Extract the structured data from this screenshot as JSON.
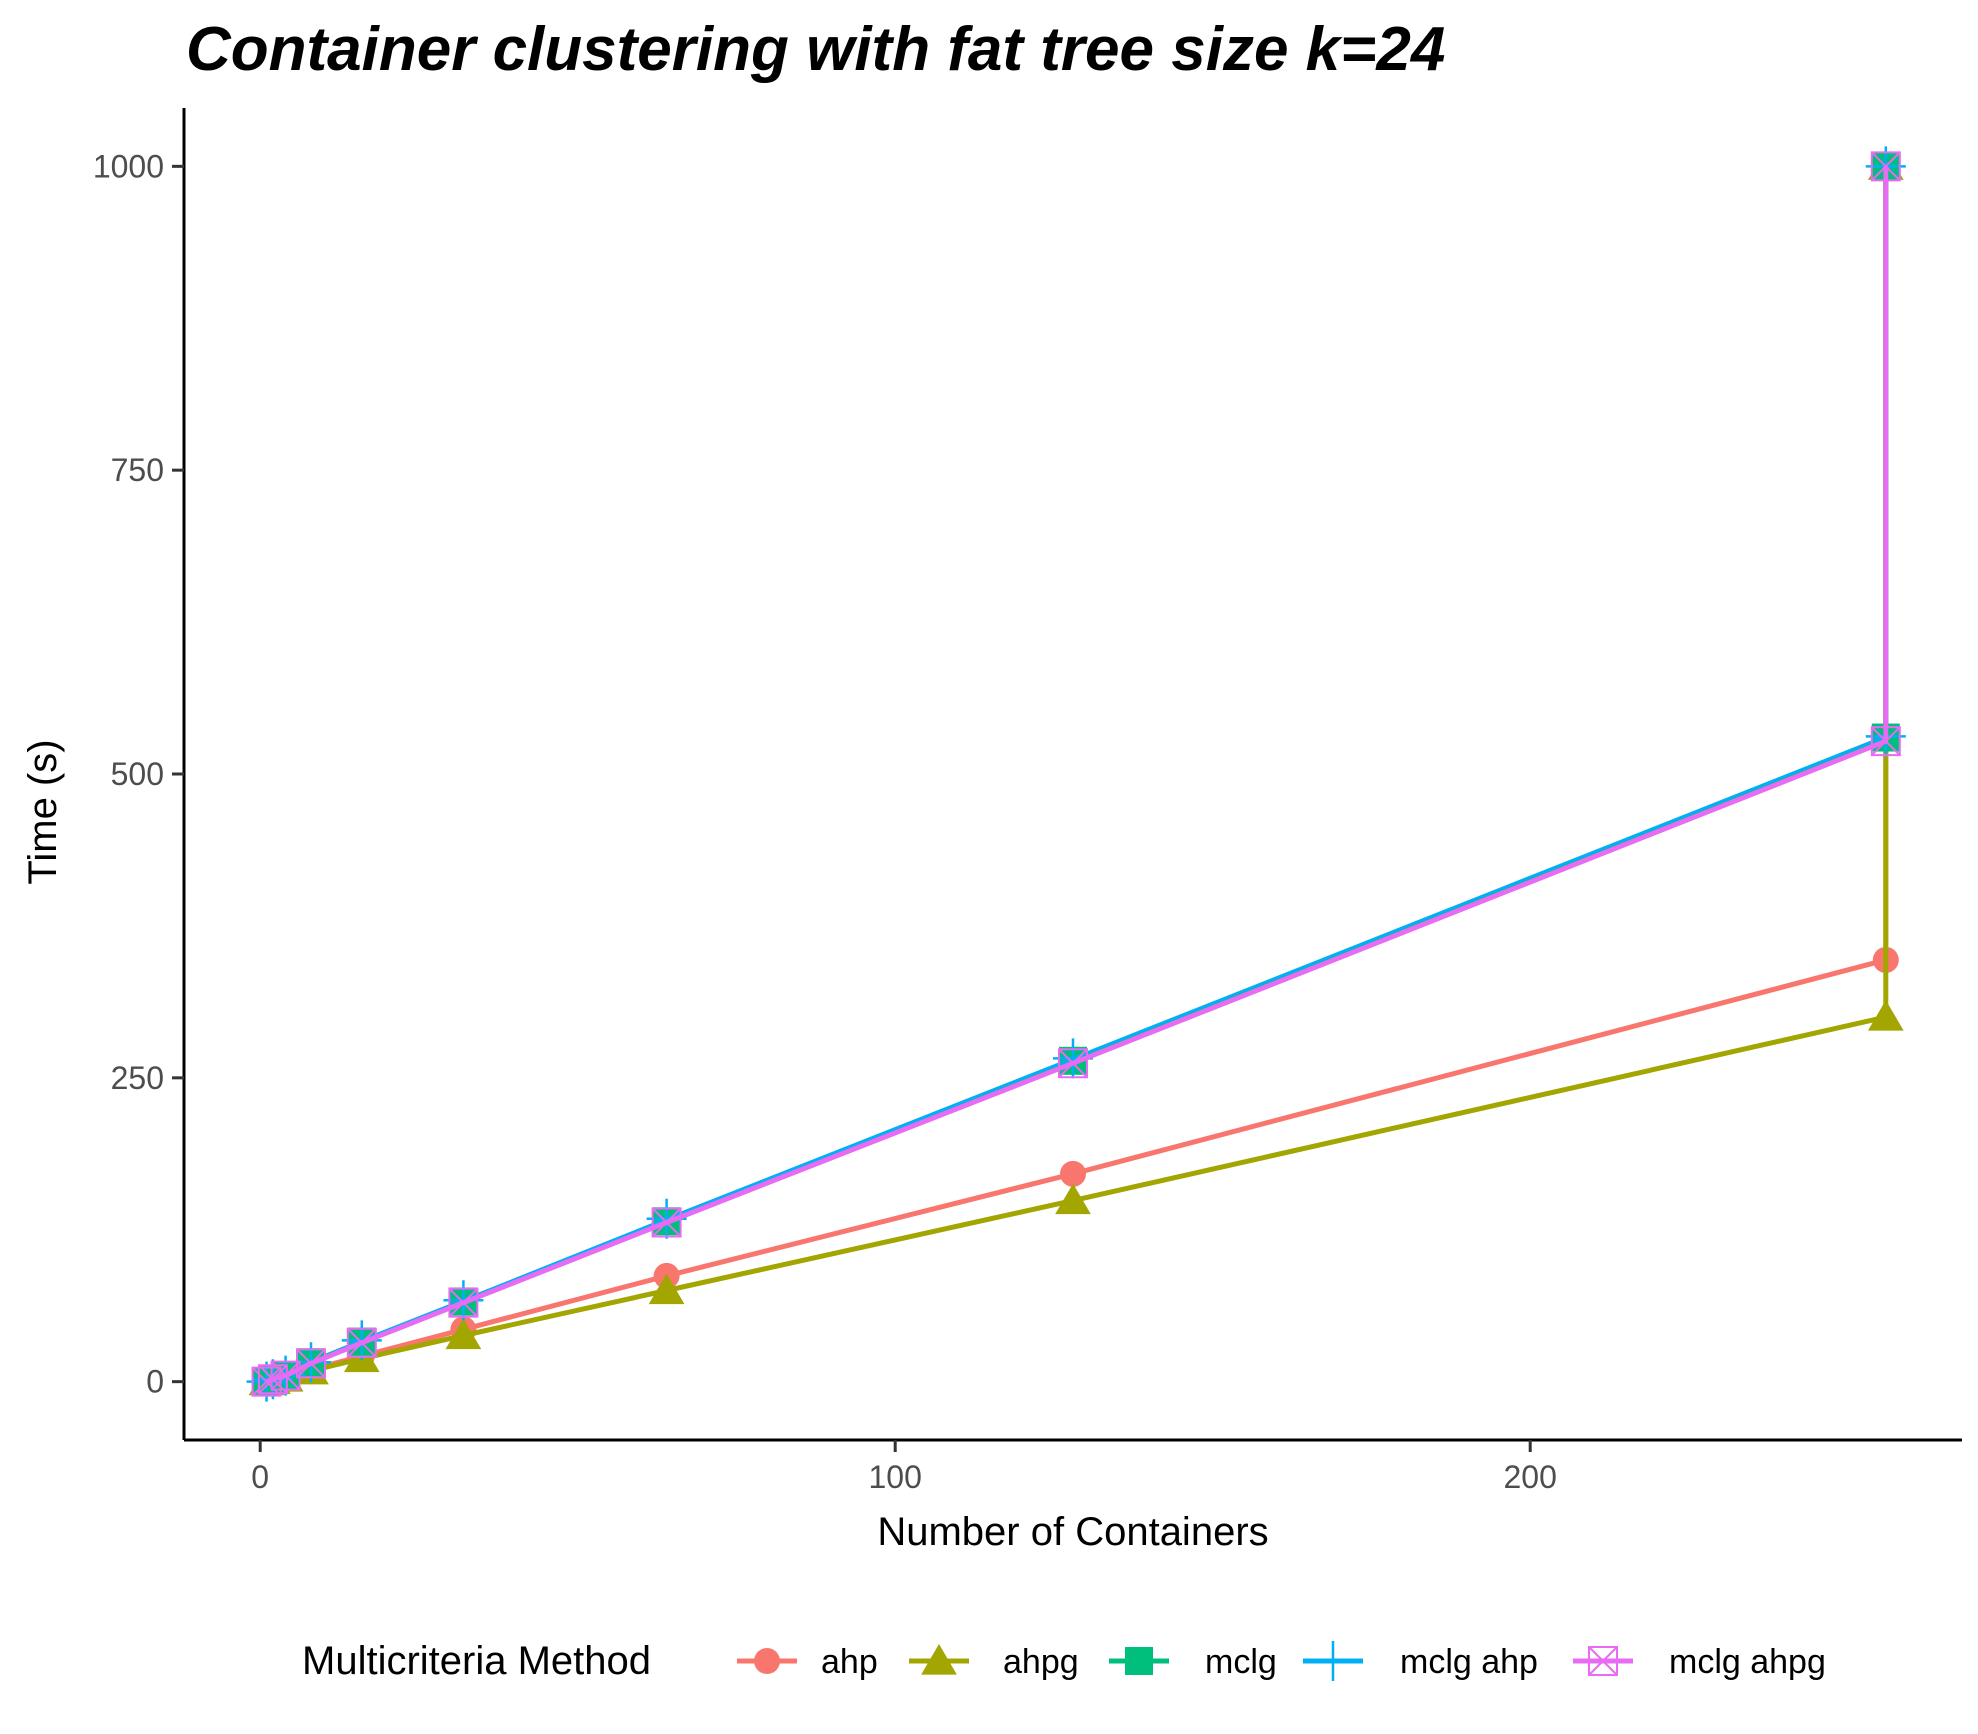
{
  "chart_data": {
    "type": "line",
    "title": "Container clustering with fat tree size k=24",
    "xlabel": "Number of Containers",
    "ylabel": "Time (s)",
    "xlim": [
      -12,
      268
    ],
    "ylim": [
      -48,
      1048
    ],
    "x_ticks": [
      0,
      100,
      200
    ],
    "y_ticks": [
      0,
      250,
      500,
      750,
      1000
    ],
    "grid": false,
    "legend": {
      "title": "Multicriteria Method",
      "position": "bottom"
    },
    "series": [
      {
        "name": "ahp",
        "color": "#F8766D",
        "marker": "circle",
        "points": [
          [
            1,
            0
          ],
          [
            2,
            1
          ],
          [
            4,
            4
          ],
          [
            8,
            10
          ],
          [
            16,
            21
          ],
          [
            32,
            43
          ],
          [
            64,
            87
          ],
          [
            128,
            171
          ],
          [
            256,
            347
          ],
          [
            256,
            1000
          ]
        ]
      },
      {
        "name": "ahpg",
        "color": "#A3A500",
        "marker": "triangle",
        "points": [
          [
            1,
            0
          ],
          [
            2,
            1
          ],
          [
            4,
            3
          ],
          [
            8,
            9
          ],
          [
            16,
            19
          ],
          [
            32,
            38
          ],
          [
            64,
            75
          ],
          [
            128,
            149
          ],
          [
            256,
            300
          ],
          [
            256,
            1000
          ]
        ]
      },
      {
        "name": "mclg",
        "color": "#00BF7D",
        "marker": "square",
        "points": [
          [
            1,
            0
          ],
          [
            2,
            2
          ],
          [
            4,
            5
          ],
          [
            8,
            16
          ],
          [
            16,
            33
          ],
          [
            32,
            66
          ],
          [
            64,
            132
          ],
          [
            128,
            264
          ],
          [
            256,
            530
          ],
          [
            256,
            1000
          ]
        ]
      },
      {
        "name": "mclg ahp",
        "color": "#00B0F6",
        "marker": "plus",
        "points": [
          [
            1,
            0
          ],
          [
            2,
            2
          ],
          [
            4,
            5
          ],
          [
            8,
            16
          ],
          [
            16,
            34
          ],
          [
            32,
            67
          ],
          [
            64,
            134
          ],
          [
            128,
            266
          ],
          [
            256,
            531
          ],
          [
            256,
            1000
          ]
        ]
      },
      {
        "name": "mclg ahpg",
        "color": "#E76BF3",
        "marker": "square-cross",
        "points": [
          [
            1,
            0
          ],
          [
            2,
            2
          ],
          [
            4,
            5
          ],
          [
            8,
            15
          ],
          [
            16,
            32
          ],
          [
            32,
            65
          ],
          [
            64,
            131
          ],
          [
            128,
            262
          ],
          [
            256,
            527
          ],
          [
            256,
            1000
          ]
        ]
      }
    ]
  }
}
